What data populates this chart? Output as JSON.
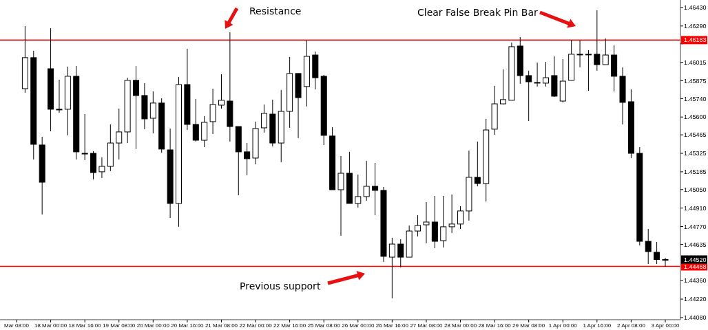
{
  "chart_data": {
    "type": "candlestick",
    "categories": [
      "Mar 08:00",
      null,
      null,
      null,
      "18 Mar 00:00",
      null,
      null,
      null,
      "18 Mar 16:00",
      null,
      null,
      null,
      "19 Mar 08:00",
      null,
      null,
      null,
      "20 Mar 00:00",
      null,
      null,
      null,
      "20 Mar 16:00",
      null,
      null,
      null,
      "21 Mar 08:00",
      null,
      null,
      null,
      "22 Mar 00:00",
      null,
      null,
      null,
      "22 Mar 16:00",
      null,
      null,
      null,
      "25 Mar 08:00",
      null,
      null,
      null,
      "26 Mar 00:00",
      null,
      null,
      null,
      "26 Mar 16:00",
      null,
      null,
      null,
      "27 Mar 08:00",
      null,
      null,
      null,
      "28 Mar 00:00",
      null,
      null,
      null,
      "28 Mar 16:00",
      null,
      null,
      null,
      "29 Mar 08:00",
      null,
      null,
      null,
      "1 Apr 00:00",
      null,
      null,
      null,
      "1 Apr 16:00",
      null,
      null,
      null,
      "2 Apr 08:00",
      null,
      null,
      null,
      "3 Apr 00:00"
    ],
    "ohlc": [
      null,
      [
        1.45815,
        1.46289,
        1.45784,
        1.4605
      ],
      [
        1.4605,
        1.46102,
        1.45278,
        1.45393
      ],
      [
        1.45388,
        1.4545,
        1.44861,
        1.45106
      ],
      [
        1.45966,
        1.46274,
        1.45492,
        1.45659
      ],
      [
        1.45659,
        1.45883,
        1.45633,
        1.45654
      ],
      [
        1.45659,
        1.45982,
        1.45461,
        1.45909
      ],
      [
        1.45909,
        1.45987,
        1.45278,
        1.45336
      ],
      [
        1.45325,
        1.45622,
        1.45273,
        1.45325
      ],
      [
        1.45325,
        1.45341,
        1.45127,
        1.45179
      ],
      [
        1.45185,
        1.45294,
        1.45138,
        1.45226
      ],
      [
        1.45226,
        1.45544,
        1.4519,
        1.45403
      ],
      [
        1.45403,
        1.45664,
        1.45278,
        1.45487
      ],
      [
        1.45487,
        1.45898,
        1.45403,
        1.45878
      ],
      [
        1.45878,
        1.45987,
        1.45357,
        1.45763
      ],
      [
        1.45763,
        1.45857,
        1.45508,
        1.45586
      ],
      [
        1.45591,
        1.45794,
        1.45476,
        1.45706
      ],
      [
        1.45706,
        1.45742,
        1.4533,
        1.45357
      ],
      [
        1.45351,
        1.45513,
        1.44835,
        1.44945
      ],
      [
        1.44945,
        1.45904,
        1.44768,
        1.45846
      ],
      [
        1.45846,
        1.46117,
        1.45502,
        1.45544
      ],
      [
        1.45544,
        1.45737,
        1.45414,
        1.45424
      ],
      [
        1.45424,
        1.45607,
        1.45372,
        1.4556
      ],
      [
        1.45565,
        1.45815,
        1.45471,
        1.45695
      ],
      [
        1.4569,
        1.45925,
        1.45664,
        1.45727
      ],
      [
        1.45721,
        1.46242,
        1.45414,
        1.45528
      ],
      [
        1.45528,
        1.45528,
        1.45007,
        1.45336
      ],
      [
        1.45336,
        1.45403,
        1.45159,
        1.45284
      ],
      [
        1.45289,
        1.45565,
        1.45242,
        1.45513
      ],
      [
        1.45518,
        1.45695,
        1.45482,
        1.45628
      ],
      [
        1.45622,
        1.45732,
        1.45377,
        1.45403
      ],
      [
        1.45403,
        1.45805,
        1.45258,
        1.45643
      ],
      [
        1.45643,
        1.46055,
        1.45518,
        1.4593
      ],
      [
        1.4593,
        1.4593,
        1.4544,
        1.45747
      ],
      [
        1.45831,
        1.4618,
        1.4568,
        1.4606
      ],
      [
        1.4607,
        1.46096,
        1.4581,
        1.45898
      ],
      [
        1.45909,
        1.45919,
        1.45388,
        1.45461
      ],
      [
        1.45456,
        1.45523,
        1.45049,
        1.45049
      ],
      [
        1.45049,
        1.45304,
        1.447,
        1.45174
      ],
      [
        1.45174,
        1.45336,
        1.44945,
        1.44945
      ],
      [
        1.44945,
        1.45164,
        1.44914,
        1.44997
      ],
      [
        1.44997,
        1.45268,
        1.44966,
        1.45075
      ],
      [
        1.45075,
        1.45252,
        1.44856,
        1.45044
      ],
      [
        1.45044,
        1.4507,
        1.44502,
        1.44544
      ],
      [
        1.44538,
        1.44684,
        1.44226,
        1.44637
      ],
      [
        1.44637,
        1.44674,
        1.4446,
        1.44538
      ],
      [
        1.44538,
        1.44778,
        1.44538,
        1.44736
      ],
      [
        1.44736,
        1.44856,
        1.44695,
        1.44778
      ],
      [
        1.44783,
        1.44955,
        1.44643,
        1.44804
      ],
      [
        1.44804,
        1.45002,
        1.44606,
        1.44658
      ],
      [
        1.44663,
        1.45002,
        1.44611,
        1.44768
      ],
      [
        1.44768,
        1.45013,
        1.44721,
        1.44789
      ],
      [
        1.44789,
        1.44924,
        1.44752,
        1.44888
      ],
      [
        1.44888,
        1.45346,
        1.44815,
        1.45143
      ],
      [
        1.45143,
        1.45414,
        1.45075,
        1.45096
      ],
      [
        1.45096,
        1.45586,
        1.4496,
        1.45502
      ],
      [
        1.45508,
        1.45836,
        1.45466,
        1.457
      ],
      [
        1.457,
        1.45961,
        1.45695,
        1.45732
      ],
      [
        1.45727,
        1.46164,
        1.45727,
        1.46133
      ],
      [
        1.46138,
        1.46206,
        1.45852,
        1.45914
      ],
      [
        1.45914,
        1.45951,
        1.4557,
        1.45867
      ],
      [
        1.45862,
        1.46013,
        1.45831,
        1.45862
      ],
      [
        1.45857,
        1.46018,
        1.45831,
        1.45898
      ],
      [
        1.45914,
        1.4606,
        1.45753,
        1.45758
      ],
      [
        1.45721,
        1.46039,
        1.45711,
        1.45872
      ],
      [
        1.45878,
        1.46185,
        1.45878,
        1.46076
      ],
      [
        1.46076,
        1.4618,
        1.45977,
        1.46076
      ],
      [
        1.46076,
        1.46107,
        1.45799,
        1.46076
      ],
      [
        1.46076,
        1.46409,
        1.45951,
        1.45997
      ],
      [
        1.45997,
        1.46196,
        1.45997,
        1.4607
      ],
      [
        1.4607,
        1.46143,
        1.45794,
        1.45909
      ],
      [
        1.45909,
        1.45977,
        1.45544,
        1.45711
      ],
      [
        1.45716,
        1.4581,
        1.45289,
        1.45325
      ],
      [
        1.45325,
        1.45372,
        1.44627,
        1.44658
      ],
      [
        1.44658,
        1.44752,
        1.44486,
        1.4458
      ],
      [
        1.44575,
        1.44653,
        1.44486,
        1.4452
      ],
      [
        1.4452,
        1.44533,
        1.44465,
        1.4452
      ]
    ],
    "ylim": [
      1.44064,
      1.46487
    ],
    "yticks": [
      {
        "value": 1.4643,
        "label": "1.46430"
      },
      {
        "value": 1.4629,
        "label": "1.46290"
      },
      {
        "value": 1.46155,
        "label": null
      },
      {
        "value": 1.46015,
        "label": "1.46015"
      },
      {
        "value": 1.45875,
        "label": "1.45875"
      },
      {
        "value": 1.4574,
        "label": "1.45740"
      },
      {
        "value": 1.456,
        "label": "1.45600"
      },
      {
        "value": 1.45465,
        "label": "1.45465"
      },
      {
        "value": 1.45325,
        "label": "1.45325"
      },
      {
        "value": 1.45185,
        "label": "1.45185"
      },
      {
        "value": 1.4505,
        "label": "1.45050"
      },
      {
        "value": 1.4491,
        "label": "1.44910"
      },
      {
        "value": 1.4477,
        "label": "1.44770"
      },
      {
        "value": 1.44635,
        "label": "1.44635"
      },
      {
        "value": 1.4436,
        "label": "1.44360"
      },
      {
        "value": 1.4422,
        "label": "1.44220"
      },
      {
        "value": 1.4408,
        "label": "1.44080"
      }
    ],
    "ref_lines": [
      {
        "axis": "y",
        "value": 1.46183,
        "label": "1.46183",
        "color": "#ff0000"
      },
      {
        "axis": "y",
        "value": 1.44468,
        "label": "1.44468",
        "color": "#ff0000"
      }
    ],
    "annotations": [
      "Resistance",
      "Clear False Break Pin Bar",
      "Previous support",
      "1.44520"
    ]
  }
}
